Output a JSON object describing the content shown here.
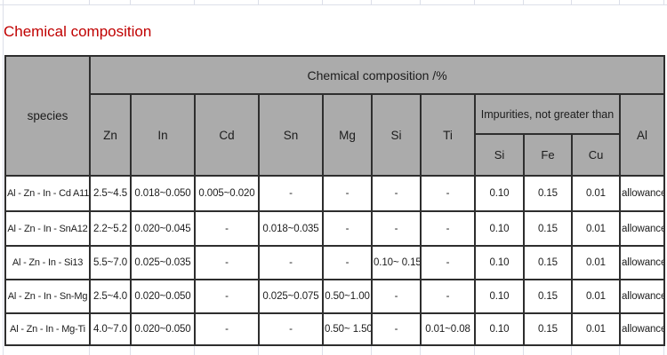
{
  "title": "Chemical composition",
  "colors": {
    "title_red": "#c00000",
    "header_bg": "#ababab",
    "table_border": "#2e2e2e",
    "gridline": "#dcdfe9"
  },
  "table": {
    "species_header": "species",
    "group_header": "Chemical composition /%",
    "impurities_header": "Impurities, not greater than",
    "element_headers": [
      "Zn",
      "In",
      "Cd",
      "Sn",
      "Mg",
      "Si",
      "Ti"
    ],
    "impurity_headers": [
      "Si",
      "Fe",
      "Cu"
    ],
    "al_header": "Al",
    "rows": [
      {
        "species": "Al - Zn - In - Cd A11",
        "values": [
          "2.5~4.5",
          "0.018~0.050",
          "0.005~0.020",
          "-",
          "-",
          "-",
          "-",
          "0.10",
          "0.15",
          "0.01",
          "allowance"
        ]
      },
      {
        "species": "Al - Zn - In - SnA12",
        "values": [
          "2.2~5.2",
          "0.020~0.045",
          "-",
          "0.018~0.035",
          "-",
          "-",
          "-",
          "0.10",
          "0.15",
          "0.01",
          "allowance"
        ]
      },
      {
        "species": "Al - Zn - In - Si13",
        "values": [
          "5.5~7.0",
          "0.025~0.035",
          "-",
          "-",
          "-",
          "0.10~ 0.15",
          "-",
          "0.10",
          "0.15",
          "0.01",
          "allowance"
        ]
      },
      {
        "species": "Al - Zn - In - Sn-Mg",
        "values": [
          "2.5~4.0",
          "0.020~0.050",
          "-",
          "0.025~0.075",
          "0.50~1.00",
          "-",
          "-",
          "0.10",
          "0.15",
          "0.01",
          "allowance"
        ]
      },
      {
        "species": "Al - Zn - In - Mg-Ti",
        "values": [
          "4.0~7.0",
          "0.020~0.050",
          "-",
          "-",
          "0.50~ 1.50",
          "-",
          "0.01~0.08",
          "0.10",
          "0.15",
          "0.01",
          "allowance"
        ]
      }
    ]
  }
}
